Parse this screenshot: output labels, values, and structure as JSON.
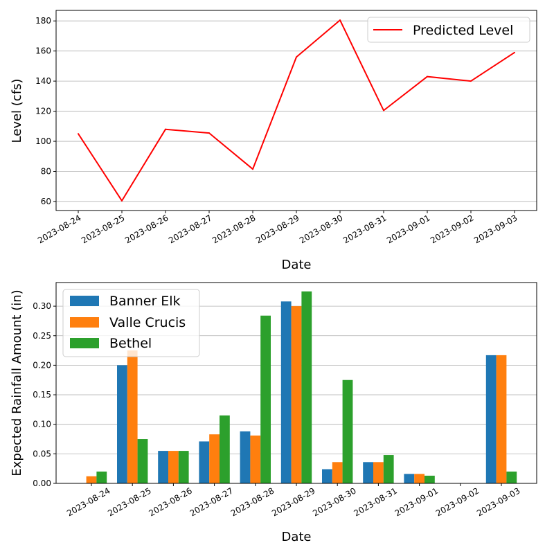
{
  "chart_data": [
    {
      "type": "line",
      "title": "",
      "xlabel": "Date",
      "ylabel": "Level (cfs)",
      "x": [
        "2023-08-24",
        "2023-08-25",
        "2023-08-26",
        "2023-08-27",
        "2023-08-28",
        "2023-08-29",
        "2023-08-30",
        "2023-08-31",
        "2023-09-01",
        "2023-09-02",
        "2023-09-03"
      ],
      "yticks": [
        60,
        80,
        100,
        120,
        140,
        160,
        180
      ],
      "ylim": [
        54,
        187
      ],
      "grid": "horizontal",
      "legend": "upper-right",
      "series": [
        {
          "name": "Predicted Level",
          "color": "#ff0000",
          "values": [
            105,
            60.5,
            108,
            105.5,
            81.5,
            156,
            180.5,
            120.5,
            143,
            140,
            159
          ]
        }
      ]
    },
    {
      "type": "bar",
      "title": "",
      "xlabel": "Date",
      "ylabel": "Expected Rainfall Amount (in)",
      "categories": [
        "2023-08-24",
        "2023-08-25",
        "2023-08-26",
        "2023-08-27",
        "2023-08-28",
        "2023-08-29",
        "2023-08-30",
        "2023-08-31",
        "2023-09-01",
        "2023-09-02",
        "2023-09-03"
      ],
      "yticks": [
        "0.00",
        "0.05",
        "0.10",
        "0.15",
        "0.20",
        "0.25",
        "0.30"
      ],
      "ylim": [
        0,
        0.34
      ],
      "grid": "horizontal",
      "legend": "upper-left",
      "series": [
        {
          "name": "Banner Elk",
          "color": "#1f77b4",
          "values": [
            0,
            0.2,
            0.055,
            0.071,
            0.088,
            0.308,
            0.024,
            0.036,
            0.016,
            0,
            0.217
          ]
        },
        {
          "name": "Valle Crucis",
          "color": "#ff7f0e",
          "values": [
            0.012,
            0.225,
            0.055,
            0.083,
            0.081,
            0.3,
            0.036,
            0.036,
            0.016,
            0,
            0.217
          ]
        },
        {
          "name": "Bethel",
          "color": "#2ca02c",
          "values": [
            0.02,
            0.075,
            0.055,
            0.115,
            0.284,
            0.325,
            0.175,
            0.048,
            0.013,
            0,
            0.02
          ]
        }
      ]
    }
  ]
}
